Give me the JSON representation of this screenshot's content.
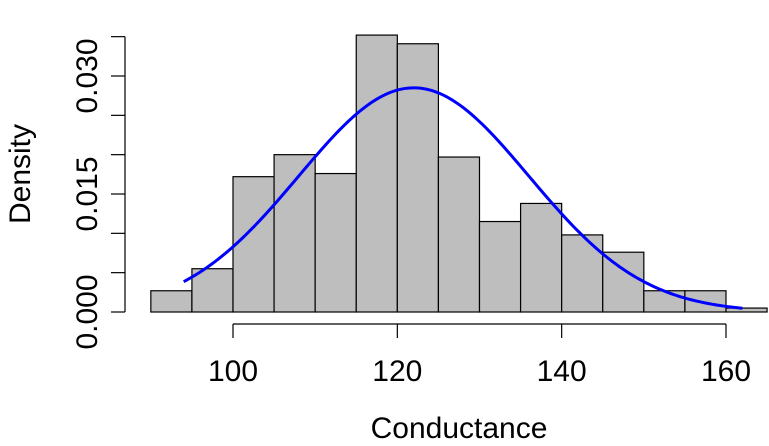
{
  "chart_data": {
    "type": "bar",
    "subtype": "histogram",
    "title": "",
    "xlabel": "Conductance",
    "ylabel": "Density",
    "xlim": [
      90,
      165
    ],
    "ylim": [
      0,
      0.035
    ],
    "x_ticks": [
      100,
      120,
      140,
      160
    ],
    "x_tick_labels": [
      "100",
      "120",
      "140",
      "160"
    ],
    "y_ticks": [
      0.0,
      0.005,
      0.01,
      0.015,
      0.02,
      0.025,
      0.03,
      0.035
    ],
    "y_tick_labels": [
      "0.000",
      "",
      "",
      "0.015",
      "",
      "",
      "0.030",
      ""
    ],
    "bins": [
      {
        "x0": 90,
        "x1": 95,
        "density": 0.0027
      },
      {
        "x0": 95,
        "x1": 100,
        "density": 0.0055
      },
      {
        "x0": 100,
        "x1": 105,
        "density": 0.0172
      },
      {
        "x0": 105,
        "x1": 110,
        "density": 0.02
      },
      {
        "x0": 110,
        "x1": 115,
        "density": 0.0176
      },
      {
        "x0": 115,
        "x1": 120,
        "density": 0.0352
      },
      {
        "x0": 120,
        "x1": 125,
        "density": 0.0341
      },
      {
        "x0": 125,
        "x1": 130,
        "density": 0.0197
      },
      {
        "x0": 130,
        "x1": 135,
        "density": 0.0115
      },
      {
        "x0": 135,
        "x1": 140,
        "density": 0.0138
      },
      {
        "x0": 140,
        "x1": 145,
        "density": 0.0098
      },
      {
        "x0": 145,
        "x1": 150,
        "density": 0.0076
      },
      {
        "x0": 150,
        "x1": 155,
        "density": 0.0027
      },
      {
        "x0": 155,
        "x1": 160,
        "density": 0.0027
      },
      {
        "x0": 160,
        "x1": 165,
        "density": 0.0005
      }
    ],
    "density_curve": {
      "type": "normal",
      "mean": 122,
      "sd": 14,
      "x_range": [
        94,
        162
      ],
      "color": "#0000ff"
    },
    "colors": {
      "bar_fill": "#bebebe",
      "bar_stroke": "#000000",
      "curve": "#0000ff"
    },
    "grid": false,
    "legend": "none"
  }
}
